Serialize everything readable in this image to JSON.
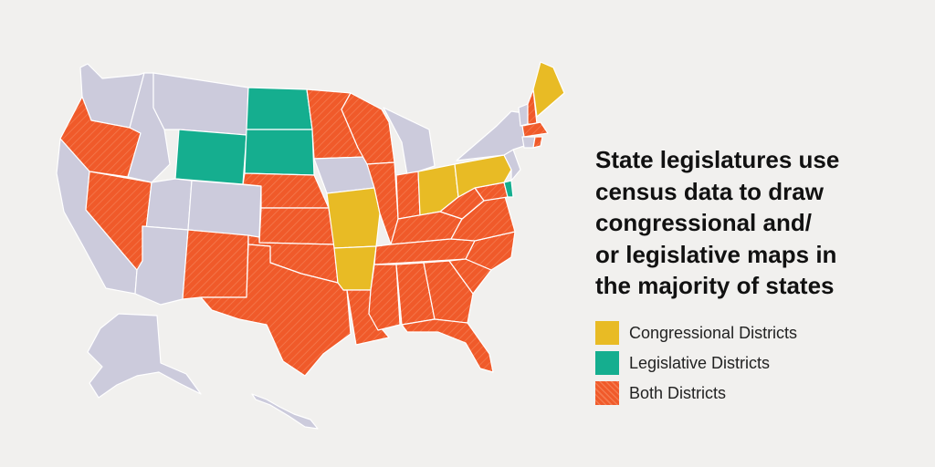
{
  "headline": {
    "lines": [
      "State legislatures use",
      "census data to draw",
      "congressional and/",
      "or legislative maps in",
      "the majority of states"
    ]
  },
  "legend": [
    {
      "label": "Congressional Districts",
      "color": "#e8bb25",
      "pattern": "solid"
    },
    {
      "label": "Legislative Districts",
      "color": "#15ae8f",
      "pattern": "solid"
    },
    {
      "label": "Both Districts",
      "color": "#f05a2a",
      "pattern": "hatched"
    }
  ],
  "colors": {
    "none": "#cccbdc",
    "congressional": "#e8bb25",
    "legislative": "#15ae8f",
    "both": "#f05a2a",
    "border": "#ffffff",
    "background": "#f1f0ee"
  },
  "states": {
    "WA": "none",
    "OR": "both",
    "CA": "none",
    "NV": "both",
    "ID": "none",
    "MT": "none",
    "WY": "legislative",
    "UT": "none",
    "CO": "none",
    "AZ": "none",
    "NM": "both",
    "ND": "legislative",
    "SD": "legislative",
    "NE": "both",
    "KS": "both",
    "OK": "both",
    "TX": "both",
    "MN": "both",
    "IA": "none",
    "MO": "congressional",
    "AR": "congressional",
    "LA": "both",
    "WI": "both",
    "IL": "both",
    "MI": "none",
    "IN": "both",
    "OH": "congressional",
    "KY": "both",
    "TN": "both",
    "MS": "both",
    "AL": "both",
    "GA": "both",
    "FL": "both",
    "SC": "both",
    "NC": "both",
    "VA": "both",
    "WV": "both",
    "MD": "both",
    "DE": "legislative",
    "PA": "congressional",
    "NJ": "none",
    "NY": "none",
    "CT": "none",
    "RI": "both",
    "MA": "both",
    "VT": "none",
    "NH": "both",
    "ME": "congressional",
    "AK": "none",
    "HI": "none"
  }
}
